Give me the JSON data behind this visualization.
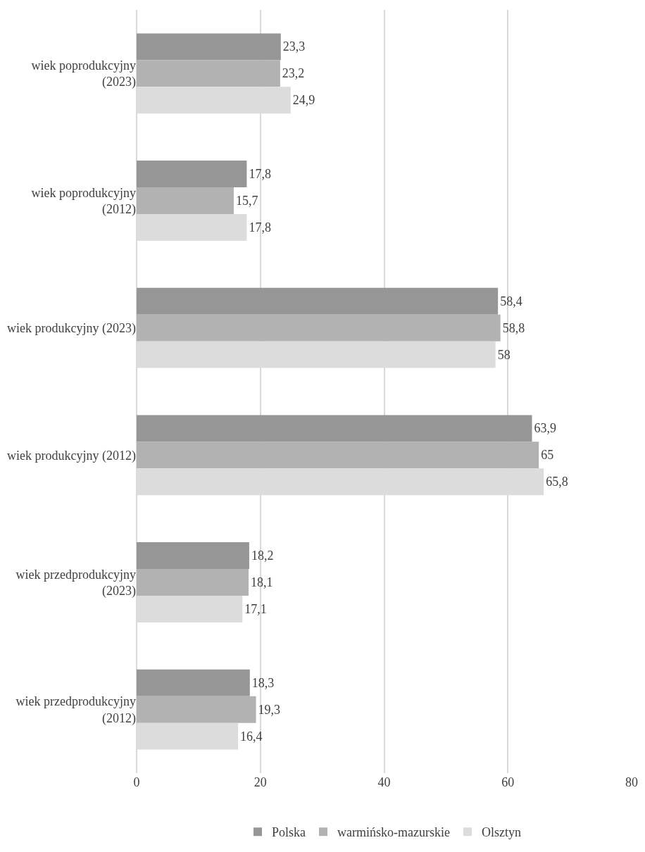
{
  "chart_data": {
    "type": "bar",
    "orientation": "horizontal",
    "categories": [
      "wiek poprodukcyjny (2023)",
      "wiek poprodukcyjny (2012)",
      "wiek produkcyjny (2023)",
      "wiek produkcyjny (2012)",
      "wiek przedprodukcyjny (2023)",
      "wiek przedprodukcyjny (2012)"
    ],
    "series": [
      {
        "name": "Polska",
        "color": "#969696",
        "values": [
          23.3,
          17.8,
          58.4,
          63.9,
          18.2,
          18.3
        ],
        "value_labels": [
          "23,3",
          "17,8",
          "58,4",
          "63,9",
          "18,2",
          "18,3"
        ]
      },
      {
        "name": "warmińsko-mazurskie",
        "color": "#b2b2b2",
        "values": [
          23.2,
          15.7,
          58.8,
          65,
          18.1,
          19.3
        ],
        "value_labels": [
          "23,2",
          "15,7",
          "58,8",
          "65",
          "18,1",
          "19,3"
        ]
      },
      {
        "name": "Olsztyn",
        "color": "#dcdcdc",
        "values": [
          24.9,
          17.8,
          58,
          65.8,
          17.1,
          16.4
        ],
        "value_labels": [
          "24,9",
          "17,8",
          "58",
          "65,8",
          "17,1",
          "16,4"
        ]
      }
    ],
    "xlim": [
      0,
      80
    ],
    "xticks": [
      0,
      20,
      40,
      60,
      80
    ],
    "grid": "x",
    "legend": "bottom"
  }
}
